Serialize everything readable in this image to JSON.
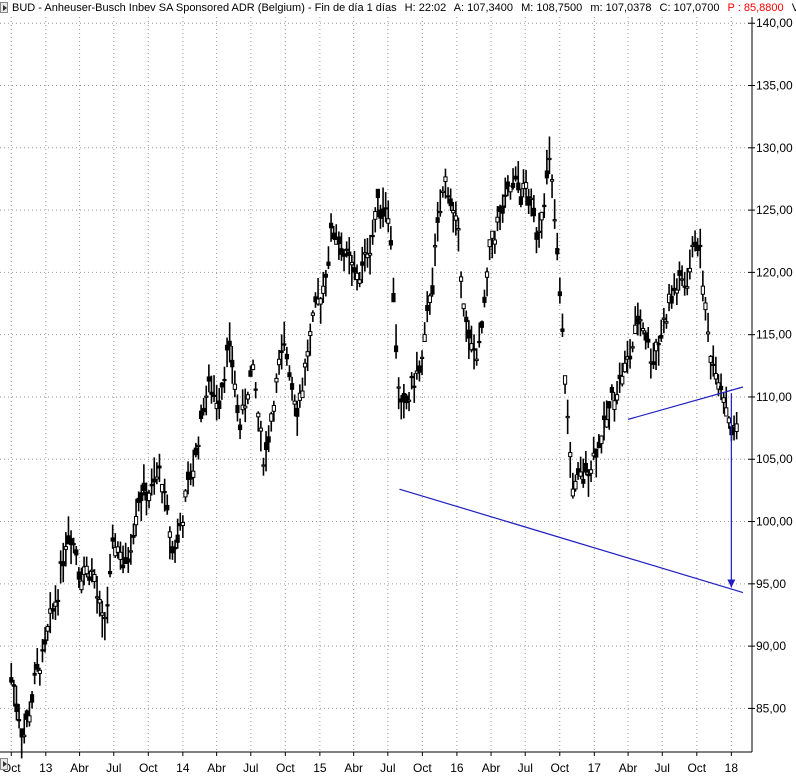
{
  "header": {
    "symbol_title": "BUD - Anheuser-Busch Inbev SA Sponsored ADR (Belgium) - Fin de día 1 días",
    "h_label": "H: 22:02",
    "a_label": "A: 107,3400",
    "m_label": "M: 108,7500",
    "lo_label": "m: 107,0378",
    "c_label": "C: 107,0700",
    "p_label": "P : 85,8800",
    "v_label": "V",
    "p_color": "#ff0000"
  },
  "chart_data": {
    "type": "candlestick",
    "ylim": [
      81.5,
      140.5
    ],
    "y_ticks": [
      "85,00",
      "90,00",
      "95,00",
      "100,00",
      "105,00",
      "110,00",
      "115,00",
      "120,00",
      "125,00",
      "130,00",
      "135,00",
      "140,00"
    ],
    "y_tick_values": [
      85,
      90,
      95,
      100,
      105,
      110,
      115,
      120,
      125,
      130,
      135,
      140
    ],
    "x_tick_labels": [
      "Oct",
      "13",
      "Abr",
      "Jul",
      "Oct",
      "14",
      "Abr",
      "Jul",
      "Oct",
      "15",
      "Abr",
      "Jul",
      "Oct",
      "16",
      "Abr",
      "Jul",
      "Oct",
      "17",
      "Abr",
      "Jul",
      "Oct",
      "18"
    ],
    "x_range_months": [
      "2012-10",
      "2018-01"
    ],
    "grid": true,
    "grid_style": "dotted",
    "price_color": "#000000",
    "trendline_color": "#1f1fbf",
    "series": [
      {
        "points": [
          [
            "2012-10-01",
            87.5
          ],
          [
            "2012-11-01",
            82.5
          ],
          [
            "2012-12-01",
            87.5
          ],
          [
            "2013-01-01",
            90.0
          ],
          [
            "2013-02-01",
            95.0
          ],
          [
            "2013-03-01",
            100.5
          ],
          [
            "2013-04-01",
            96.0
          ],
          [
            "2013-05-01",
            96.5
          ],
          [
            "2013-06-01",
            90.5
          ],
          [
            "2013-07-01",
            99.0
          ],
          [
            "2013-08-01",
            96.0
          ],
          [
            "2013-09-01",
            103.0
          ],
          [
            "2013-10-01",
            102.0
          ],
          [
            "2013-11-01",
            104.0
          ],
          [
            "2013-12-01",
            97.0
          ],
          [
            "2014-01-01",
            101.0
          ],
          [
            "2014-02-01",
            105.5
          ],
          [
            "2014-03-01",
            111.0
          ],
          [
            "2014-04-01",
            110.0
          ],
          [
            "2014-05-01",
            114.5
          ],
          [
            "2014-06-01",
            107.0
          ],
          [
            "2014-07-01",
            113.0
          ],
          [
            "2014-08-01",
            104.0
          ],
          [
            "2014-09-01",
            111.0
          ],
          [
            "2014-10-01",
            114.0
          ],
          [
            "2014-11-01",
            109.0
          ],
          [
            "2014-12-01",
            114.5
          ],
          [
            "2015-01-01",
            118.0
          ],
          [
            "2015-02-01",
            124.0
          ],
          [
            "2015-03-01",
            122.0
          ],
          [
            "2015-04-01",
            119.0
          ],
          [
            "2015-05-01",
            121.0
          ],
          [
            "2015-06-01",
            125.5
          ],
          [
            "2015-07-01",
            126.0
          ],
          [
            "2015-08-01",
            107.0
          ],
          [
            "2015-09-01",
            111.0
          ],
          [
            "2015-10-01",
            113.0
          ],
          [
            "2015-11-01",
            122.0
          ],
          [
            "2015-12-01",
            128.0
          ],
          [
            "2016-01-01",
            122.5
          ],
          [
            "2016-02-01",
            113.0
          ],
          [
            "2016-03-01",
            114.0
          ],
          [
            "2016-04-01",
            123.0
          ],
          [
            "2016-05-01",
            125.0
          ],
          [
            "2016-06-01",
            127.0
          ],
          [
            "2016-07-01",
            126.5
          ],
          [
            "2016-08-01",
            123.0
          ],
          [
            "2016-09-01",
            130.0
          ],
          [
            "2016-10-01",
            116.0
          ],
          [
            "2016-11-01",
            102.0
          ],
          [
            "2016-12-01",
            103.5
          ],
          [
            "2017-01-01",
            106.0
          ],
          [
            "2017-02-01",
            108.0
          ],
          [
            "2017-03-01",
            111.5
          ],
          [
            "2017-04-01",
            113.0
          ],
          [
            "2017-05-01",
            117.0
          ],
          [
            "2017-06-01",
            113.0
          ],
          [
            "2017-07-01",
            116.0
          ],
          [
            "2017-08-01",
            119.0
          ],
          [
            "2017-09-01",
            119.0
          ],
          [
            "2017-10-01",
            124.0
          ],
          [
            "2017-11-01",
            113.0
          ],
          [
            "2017-12-01",
            112.0
          ],
          [
            "2018-01-01",
            107.0
          ]
        ]
      }
    ],
    "annotations": [
      {
        "type": "trendline",
        "from": [
          "2015-08-01",
          102.6
        ],
        "to": [
          "2018-02-01",
          94.3
        ]
      },
      {
        "type": "trendline",
        "from": [
          "2017-04-01",
          108.2
        ],
        "to": [
          "2018-02-01",
          110.8
        ]
      },
      {
        "type": "arrow",
        "from": [
          "2018-01-01",
          110.3
        ],
        "to": [
          "2018-01-01",
          94.7
        ]
      }
    ]
  }
}
